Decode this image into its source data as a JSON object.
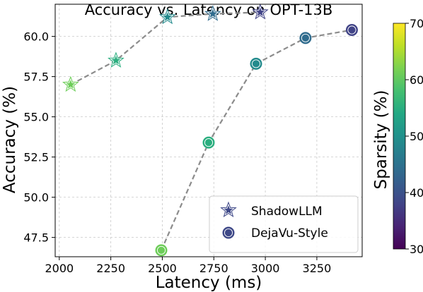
{
  "chart_data": {
    "type": "scatter",
    "title": "Accuracy vs. Latency on OPT-13B",
    "xlabel": "Latency (ms)",
    "ylabel": "Accuracy (%)",
    "xlim": [
      1980,
      3470
    ],
    "ylim": [
      46.3,
      62.0
    ],
    "xticks": [
      2000,
      2250,
      2500,
      2750,
      3000,
      3250
    ],
    "yticks": [
      47.5,
      50.0,
      52.5,
      55.0,
      57.5,
      60.0
    ],
    "ytick_labels": [
      "47.5",
      "50.0",
      "52.5",
      "55.0",
      "57.5",
      "60.0"
    ],
    "grid": true,
    "legend_position": "lower-right",
    "colorbar": {
      "label": "Sparsity (%)",
      "range": [
        30,
        70
      ],
      "ticks": [
        30,
        40,
        50,
        60,
        70
      ],
      "colormap": "viridis"
    },
    "series": [
      {
        "name": "ShadowLLM",
        "marker": "star",
        "points": [
          {
            "x": 2055,
            "y": 57.0,
            "sparsity": 61
          },
          {
            "x": 2275,
            "y": 58.5,
            "sparsity": 55
          },
          {
            "x": 2525,
            "y": 61.2,
            "sparsity": 49
          },
          {
            "x": 2745,
            "y": 61.4,
            "sparsity": 44
          },
          {
            "x": 2975,
            "y": 61.5,
            "sparsity": 38
          }
        ]
      },
      {
        "name": "DejaVu-Style",
        "marker": "circle",
        "points": [
          {
            "x": 2495,
            "y": 46.7,
            "sparsity": 61
          },
          {
            "x": 2725,
            "y": 53.4,
            "sparsity": 55
          },
          {
            "x": 2955,
            "y": 58.3,
            "sparsity": 49
          },
          {
            "x": 3195,
            "y": 59.9,
            "sparsity": 44
          },
          {
            "x": 3420,
            "y": 60.4,
            "sparsity": 38
          }
        ]
      }
    ]
  }
}
